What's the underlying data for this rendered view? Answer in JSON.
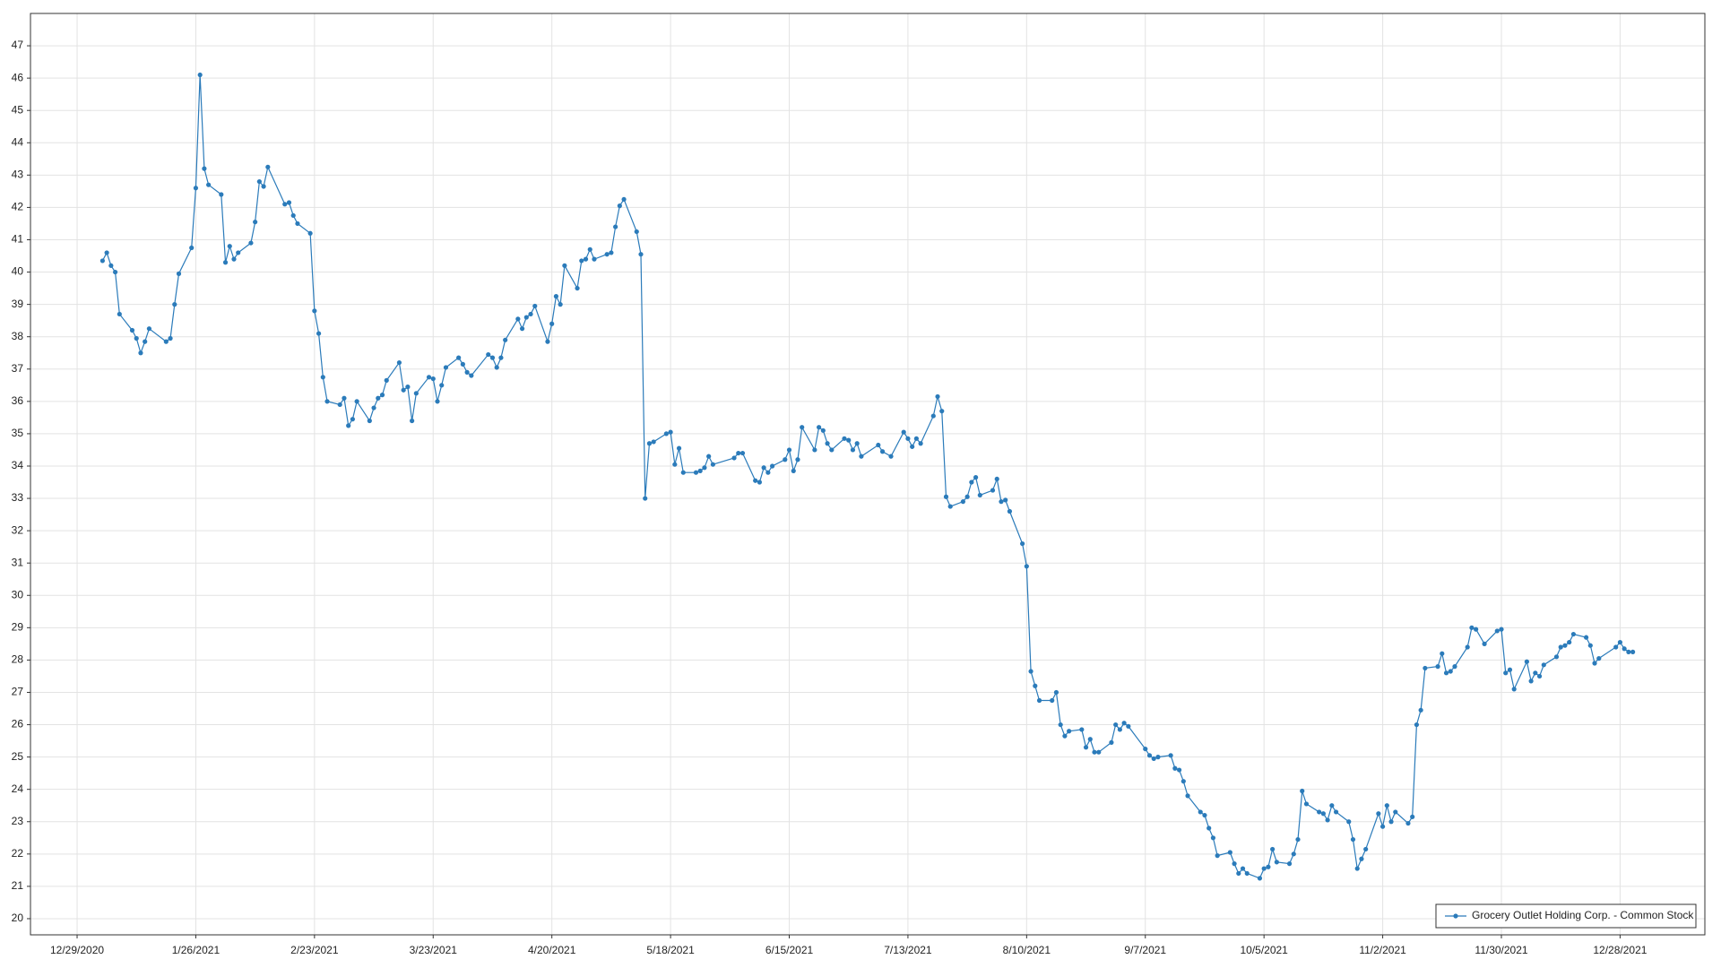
{
  "chart_data": {
    "type": "line",
    "x": [
      "1/4/2021",
      "1/5/2021",
      "1/6/2021",
      "1/7/2021",
      "1/8/2021",
      "1/11/2021",
      "1/12/2021",
      "1/13/2021",
      "1/14/2021",
      "1/15/2021",
      "1/19/2021",
      "1/20/2021",
      "1/21/2021",
      "1/22/2021",
      "1/25/2021",
      "1/26/2021",
      "1/27/2021",
      "1/28/2021",
      "1/29/2021",
      "2/1/2021",
      "2/2/2021",
      "2/3/2021",
      "2/4/2021",
      "2/5/2021",
      "2/8/2021",
      "2/9/2021",
      "2/10/2021",
      "2/11/2021",
      "2/12/2021",
      "2/16/2021",
      "2/17/2021",
      "2/18/2021",
      "2/19/2021",
      "2/22/2021",
      "2/23/2021",
      "2/24/2021",
      "2/25/2021",
      "2/26/2021",
      "3/1/2021",
      "3/2/2021",
      "3/3/2021",
      "3/4/2021",
      "3/5/2021",
      "3/8/2021",
      "3/9/2021",
      "3/10/2021",
      "3/11/2021",
      "3/12/2021",
      "3/15/2021",
      "3/16/2021",
      "3/17/2021",
      "3/18/2021",
      "3/19/2021",
      "3/22/2021",
      "3/23/2021",
      "3/24/2021",
      "3/25/2021",
      "3/26/2021",
      "3/29/2021",
      "3/30/2021",
      "3/31/2021",
      "4/1/2021",
      "4/5/2021",
      "4/6/2021",
      "4/7/2021",
      "4/8/2021",
      "4/9/2021",
      "4/12/2021",
      "4/13/2021",
      "4/14/2021",
      "4/15/2021",
      "4/16/2021",
      "4/19/2021",
      "4/20/2021",
      "4/21/2021",
      "4/22/2021",
      "4/23/2021",
      "4/26/2021",
      "4/27/2021",
      "4/28/2021",
      "4/29/2021",
      "4/30/2021",
      "5/3/2021",
      "5/4/2021",
      "5/5/2021",
      "5/6/2021",
      "5/7/2021",
      "5/10/2021",
      "5/11/2021",
      "5/12/2021",
      "5/13/2021",
      "5/14/2021",
      "5/17/2021",
      "5/18/2021",
      "5/19/2021",
      "5/20/2021",
      "5/21/2021",
      "5/24/2021",
      "5/25/2021",
      "5/26/2021",
      "5/27/2021",
      "5/28/2021",
      "6/2/2021",
      "6/3/2021",
      "6/4/2021",
      "6/7/2021",
      "6/8/2021",
      "6/9/2021",
      "6/10/2021",
      "6/11/2021",
      "6/14/2021",
      "6/15/2021",
      "6/16/2021",
      "6/17/2021",
      "6/18/2021",
      "6/21/2021",
      "6/22/2021",
      "6/23/2021",
      "6/24/2021",
      "6/25/2021",
      "6/28/2021",
      "6/29/2021",
      "6/30/2021",
      "7/1/2021",
      "7/2/2021",
      "7/6/2021",
      "7/7/2021",
      "7/9/2021",
      "7/12/2021",
      "7/13/2021",
      "7/14/2021",
      "7/15/2021",
      "7/16/2021",
      "7/19/2021",
      "7/20/2021",
      "7/21/2021",
      "7/22/2021",
      "7/23/2021",
      "7/26/2021",
      "7/27/2021",
      "7/28/2021",
      "7/29/2021",
      "7/30/2021",
      "8/2/2021",
      "8/3/2021",
      "8/4/2021",
      "8/5/2021",
      "8/6/2021",
      "8/9/2021",
      "8/10/2021",
      "8/11/2021",
      "8/12/2021",
      "8/13/2021",
      "8/16/2021",
      "8/17/2021",
      "8/18/2021",
      "8/19/2021",
      "8/20/2021",
      "8/23/2021",
      "8/24/2021",
      "8/25/2021",
      "8/26/2021",
      "8/27/2021",
      "8/30/2021",
      "8/31/2021",
      "9/1/2021",
      "9/2/2021",
      "9/3/2021",
      "9/7/2021",
      "9/8/2021",
      "9/9/2021",
      "9/10/2021",
      "9/13/2021",
      "9/14/2021",
      "9/15/2021",
      "9/16/2021",
      "9/17/2021",
      "9/20/2021",
      "9/21/2021",
      "9/22/2021",
      "9/23/2021",
      "9/24/2021",
      "9/27/2021",
      "9/28/2021",
      "9/29/2021",
      "9/30/2021",
      "10/1/2021",
      "10/4/2021",
      "10/5/2021",
      "10/6/2021",
      "10/7/2021",
      "10/8/2021",
      "10/11/2021",
      "10/12/2021",
      "10/13/2021",
      "10/14/2021",
      "10/15/2021",
      "10/18/2021",
      "10/19/2021",
      "10/20/2021",
      "10/21/2021",
      "10/22/2021",
      "10/25/2021",
      "10/26/2021",
      "10/27/2021",
      "10/28/2021",
      "10/29/2021",
      "11/1/2021",
      "11/2/2021",
      "11/3/2021",
      "11/4/2021",
      "11/5/2021",
      "11/8/2021",
      "11/9/2021",
      "11/10/2021",
      "11/11/2021",
      "11/12/2021",
      "11/15/2021",
      "11/16/2021",
      "11/17/2021",
      "11/18/2021",
      "11/19/2021",
      "11/22/2021",
      "11/23/2021",
      "11/24/2021",
      "11/26/2021",
      "11/29/2021",
      "11/30/2021",
      "12/1/2021",
      "12/2/2021",
      "12/3/2021",
      "12/6/2021",
      "12/7/2021",
      "12/8/2021",
      "12/9/2021",
      "12/10/2021",
      "12/13/2021",
      "12/14/2021",
      "12/15/2021",
      "12/16/2021",
      "12/17/2021",
      "12/20/2021",
      "12/21/2021",
      "12/22/2021",
      "12/23/2021",
      "12/27/2021",
      "12/28/2021",
      "12/29/2021",
      "12/30/2021",
      "12/31/2021"
    ],
    "series": [
      {
        "name": "Grocery Outlet Holding Corp. - Common Stock",
        "color": "#2b7bba",
        "values": [
          40.35,
          40.6,
          40.2,
          40.0,
          38.7,
          38.2,
          37.95,
          37.5,
          37.85,
          38.25,
          37.85,
          37.95,
          39.0,
          39.95,
          40.75,
          42.6,
          46.1,
          43.2,
          42.7,
          42.4,
          40.3,
          40.8,
          40.4,
          40.6,
          40.9,
          41.55,
          42.8,
          42.65,
          43.25,
          42.1,
          42.15,
          41.75,
          41.5,
          41.2,
          38.8,
          38.1,
          36.75,
          36.0,
          35.9,
          36.1,
          35.25,
          35.45,
          36.0,
          35.4,
          35.8,
          36.1,
          36.2,
          36.65,
          37.2,
          36.35,
          36.45,
          35.4,
          36.25,
          36.75,
          36.7,
          36.0,
          36.5,
          37.05,
          37.35,
          37.15,
          36.9,
          36.8,
          37.45,
          37.35,
          37.05,
          37.35,
          37.9,
          38.55,
          38.25,
          38.6,
          38.7,
          38.95,
          37.85,
          38.4,
          39.25,
          39.0,
          40.2,
          39.5,
          40.35,
          40.4,
          40.7,
          40.4,
          40.55,
          40.6,
          41.4,
          42.05,
          42.25,
          41.25,
          40.55,
          33.0,
          34.7,
          34.75,
          35.0,
          35.05,
          34.05,
          34.55,
          33.8,
          33.8,
          33.85,
          33.95,
          34.3,
          34.05,
          34.25,
          34.4,
          34.4,
          33.55,
          33.5,
          33.95,
          33.8,
          34.0,
          34.2,
          34.5,
          33.85,
          34.2,
          35.2,
          34.5,
          35.2,
          35.1,
          34.7,
          34.5,
          34.85,
          34.8,
          34.5,
          34.7,
          34.3,
          34.65,
          34.45,
          34.3,
          35.05,
          34.85,
          34.6,
          34.85,
          34.7,
          35.55,
          36.15,
          35.7,
          33.05,
          32.75,
          32.9,
          33.05,
          33.5,
          33.65,
          33.1,
          33.25,
          33.6,
          32.9,
          32.95,
          32.6,
          31.6,
          30.9,
          27.65,
          27.2,
          26.75,
          26.75,
          27.0,
          26.0,
          25.65,
          25.8,
          25.85,
          25.3,
          25.55,
          25.15,
          25.15,
          25.45,
          26.0,
          25.85,
          26.05,
          25.95,
          25.25,
          25.05,
          24.95,
          25.0,
          25.05,
          24.65,
          24.6,
          24.25,
          23.8,
          23.3,
          23.2,
          22.8,
          22.5,
          21.95,
          22.05,
          21.7,
          21.4,
          21.55,
          21.4,
          21.25,
          21.55,
          21.6,
          22.15,
          21.75,
          21.7,
          22.0,
          22.45,
          23.95,
          23.55,
          23.3,
          23.25,
          23.05,
          23.5,
          23.3,
          23.0,
          22.45,
          21.55,
          21.85,
          22.15,
          23.25,
          22.85,
          23.5,
          23.0,
          23.3,
          22.95,
          23.15,
          26.0,
          26.45,
          27.75,
          27.8,
          28.2,
          27.6,
          27.65,
          27.8,
          28.4,
          29.0,
          28.95,
          28.5,
          28.9,
          28.95,
          27.6,
          27.7,
          27.1,
          27.95,
          27.35,
          27.6,
          27.5,
          27.85,
          28.1,
          28.4,
          28.45,
          28.55,
          28.8,
          28.7,
          28.45,
          27.9,
          28.05,
          28.4,
          28.55,
          28.35,
          28.25,
          28.25
        ]
      }
    ],
    "xlim": [
      "12/18/2020",
      "1/17/2022"
    ],
    "xticks": [
      "12/29/2020",
      "1/26/2021",
      "2/23/2021",
      "3/23/2021",
      "4/20/2021",
      "5/18/2021",
      "6/15/2021",
      "7/13/2021",
      "8/10/2021",
      "9/7/2021",
      "10/5/2021",
      "11/2/2021",
      "11/30/2021",
      "12/28/2021"
    ],
    "ylim": [
      19.5,
      48
    ],
    "yticks": [
      20,
      21,
      22,
      23,
      24,
      25,
      26,
      27,
      28,
      29,
      30,
      31,
      32,
      33,
      34,
      35,
      36,
      37,
      38,
      39,
      40,
      41,
      42,
      43,
      44,
      45,
      46,
      47
    ],
    "grid": true,
    "legend": "lower right"
  }
}
